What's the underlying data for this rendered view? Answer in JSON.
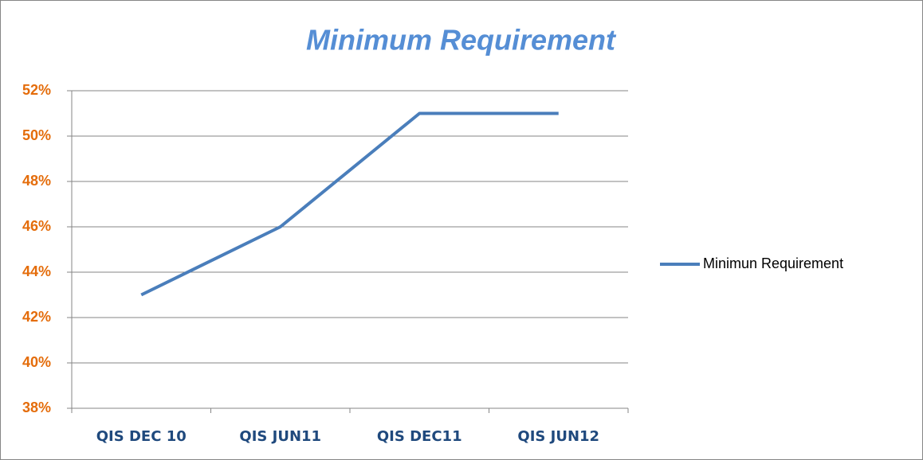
{
  "chart_data": {
    "type": "line",
    "title": "Minimum Requirement",
    "categories": [
      "QIS DEC 10",
      "QIS JUN11",
      "QIS DEC11",
      "QIS JUN12"
    ],
    "series": [
      {
        "name": "Minimun Requirement",
        "color": "#4a7ebb",
        "values": [
          43,
          46,
          51,
          51
        ]
      }
    ],
    "ylim": [
      38,
      52
    ],
    "yticks": [
      {
        "value": 38,
        "label": "38%"
      },
      {
        "value": 40,
        "label": "40%"
      },
      {
        "value": 42,
        "label": "42%"
      },
      {
        "value": 44,
        "label": "44%"
      },
      {
        "value": 46,
        "label": "46%"
      },
      {
        "value": 48,
        "label": "48%"
      },
      {
        "value": 50,
        "label": "50%"
      },
      {
        "value": 52,
        "label": "52%"
      }
    ],
    "grid": true,
    "legend": "right"
  }
}
